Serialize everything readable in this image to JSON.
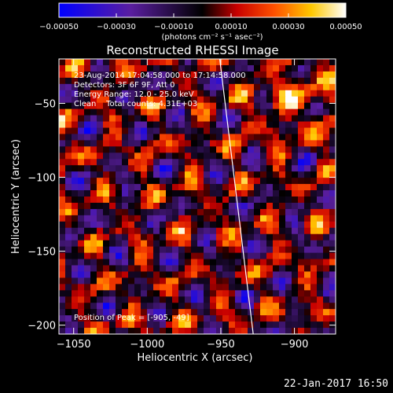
{
  "chart_data": {
    "type": "heatmap",
    "title": "Reconstructed RHESSI Image",
    "xlabel": "Heliocentric X (arcsec)",
    "ylabel": "Heliocentric Y (arcsec)",
    "xlim": [
      -1060,
      -872
    ],
    "ylim": [
      -206,
      -20
    ],
    "x_ticks": [
      -1050,
      -1000,
      -950,
      -900
    ],
    "y_ticks": [
      -200,
      -150,
      -100,
      -50
    ],
    "x_tick_labels": [
      "−1050",
      "−1000",
      "−950",
      "−900"
    ],
    "y_tick_labels": [
      "−200",
      "−150",
      "−100",
      "−50"
    ],
    "colorbar": {
      "range": [
        -0.0005,
        0.0005
      ],
      "ticks": [
        -0.0005,
        -0.0003,
        -0.0001,
        0.0001,
        0.0003,
        0.0005
      ],
      "tick_labels": [
        "−0.00050",
        "−0.00030",
        "−0.00010",
        "0.00010",
        "0.00030",
        "0.00050"
      ],
      "unit_label": "(photons cm⁻² s⁻¹ asec⁻²)",
      "colormap": "blue-purple-black-red-orange-yellow-white"
    },
    "limb_line": [
      [
        -951,
        -18
      ],
      [
        -928,
        -206
      ]
    ],
    "annotations": {
      "time_range": "23-Aug-2014 17:04:58.000 to 17:14:58.000",
      "detectors": "Detectors: 3F 6F 9F, Att 0",
      "energy_range": "Energy Range: 12.0 - 25.0 keV",
      "method": "Clean    Total counts: 4.31E+03",
      "peak": "Position of Peak = [-905, -49]"
    }
  },
  "footer": {
    "date": "22-Jan-2017 16:50"
  }
}
